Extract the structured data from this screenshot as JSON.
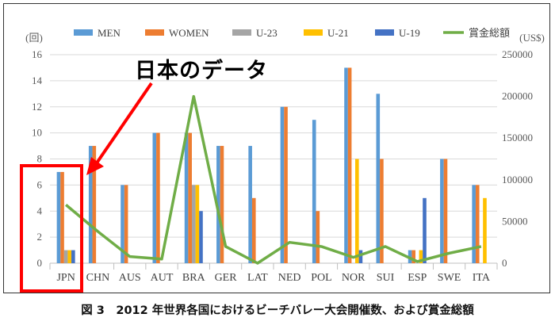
{
  "annotation": "日本のデータ",
  "caption": "図 3　2012 年世界各国におけるビーチバレー大会開催数、および賞金総額",
  "chart_data": {
    "type": "bar",
    "categories": [
      "JPN",
      "CHN",
      "AUS",
      "AUT",
      "BRA",
      "GER",
      "LAT",
      "NED",
      "POL",
      "NOR",
      "SUI",
      "ESP",
      "SWE",
      "ITA"
    ],
    "series": [
      {
        "name": "MEN",
        "color": "#5b9bd5",
        "values": [
          7,
          9,
          6,
          10,
          10,
          9,
          9,
          12,
          11,
          15,
          13,
          1,
          8,
          6
        ]
      },
      {
        "name": "WOMEN",
        "color": "#ed7d31",
        "values": [
          7,
          9,
          6,
          10,
          10,
          9,
          5,
          12,
          4,
          15,
          8,
          1,
          8,
          6
        ]
      },
      {
        "name": "U-23",
        "color": "#a5a5a5",
        "values": [
          1,
          0,
          0,
          0,
          6,
          0,
          0,
          0,
          0,
          0,
          0,
          0,
          0,
          0
        ]
      },
      {
        "name": "U-21",
        "color": "#ffc000",
        "values": [
          1,
          0,
          0,
          0,
          6,
          0,
          0,
          0,
          0,
          8,
          0,
          1,
          0,
          5
        ]
      },
      {
        "name": "U-19",
        "color": "#4472c4",
        "values": [
          1,
          0,
          0,
          0,
          4,
          0,
          0,
          0,
          0,
          1,
          0,
          5,
          0,
          0
        ]
      },
      {
        "name": "賞金総額",
        "color": "#70ad47",
        "type": "line",
        "axis": "right",
        "values": [
          70000,
          38000,
          8000,
          5000,
          200000,
          20000,
          0,
          25000,
          20000,
          7000,
          20000,
          2000,
          12000,
          20000
        ]
      }
    ],
    "y_left": {
      "label": "(回)",
      "min": 0,
      "max": 16,
      "ticks": [
        0,
        2,
        4,
        6,
        8,
        10,
        12,
        14,
        16
      ]
    },
    "y_right": {
      "label": "(US$)",
      "min": 0,
      "max": 250000,
      "ticks": [
        0,
        50000,
        100000,
        150000,
        200000,
        250000
      ]
    },
    "legend_position": "top",
    "highlight_category": "JPN",
    "highlight_color": "#ff0000"
  }
}
